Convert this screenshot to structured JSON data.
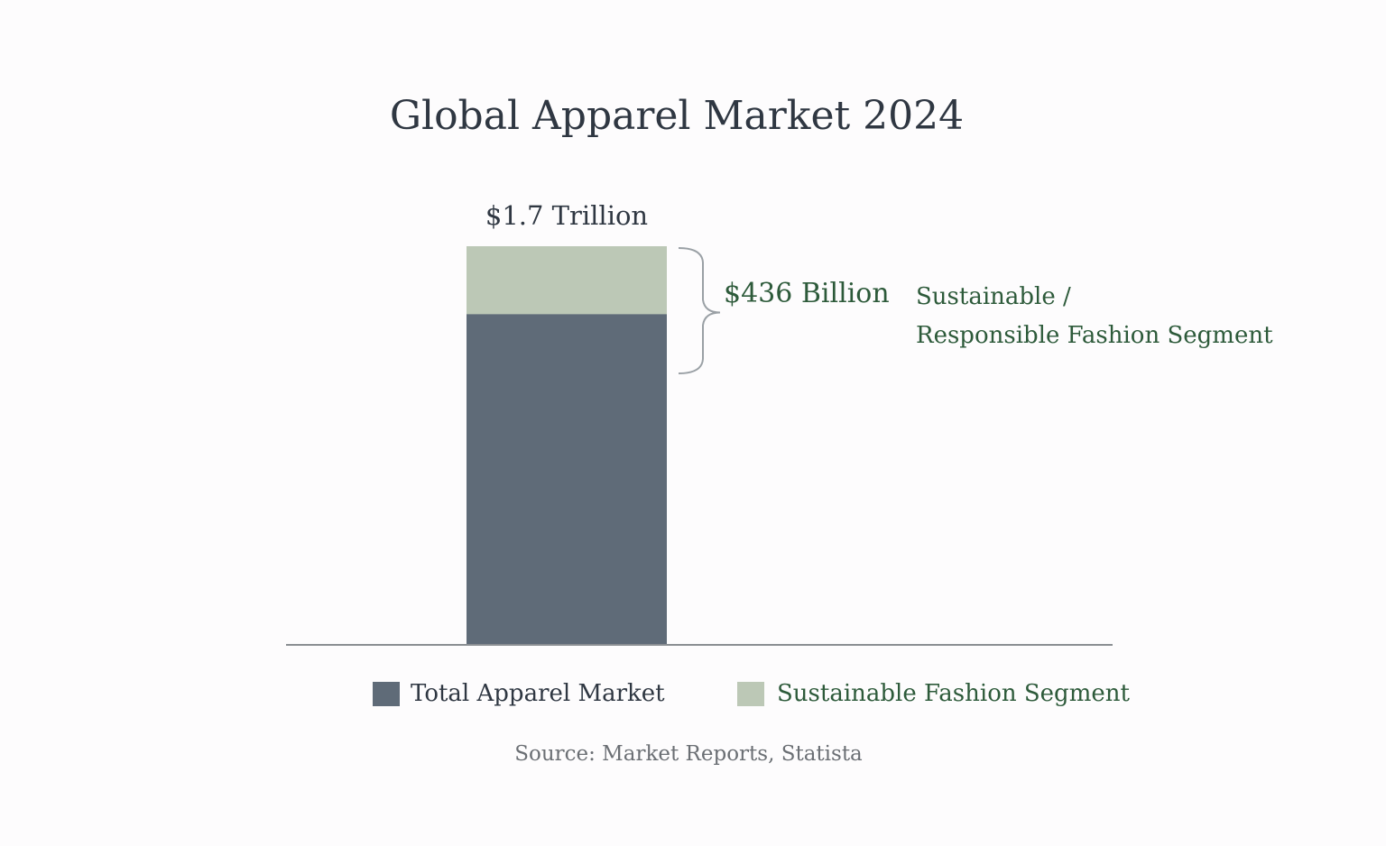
{
  "chart_data": {
    "type": "bar",
    "title": "Global Apparel Market  2024",
    "categories": [
      ""
    ],
    "series": [
      {
        "name": "Total Apparel Market",
        "values": [
          1.7
        ],
        "unit": "Trillion USD",
        "label": "$1.7 Trillion"
      },
      {
        "name": "Sustainable Fashion Segment",
        "values": [
          0.436
        ],
        "unit": "Trillion USD",
        "label": "$436 Billion"
      }
    ],
    "annotation": {
      "value_label": "$436 Billion",
      "description_lines": [
        "Sustainable /",
        "Responsible Fashion Segment"
      ]
    },
    "ylim": [
      0,
      1.7
    ],
    "grid": false,
    "legend": {
      "placement": "bottom",
      "items": [
        {
          "label": "Total Apparel Market",
          "color": "#5f6b78"
        },
        {
          "label": "Sustainable Fashion Segment",
          "color": "#bcc8b6"
        }
      ]
    },
    "source": "Source:  Market Reports, Statista"
  },
  "colors": {
    "total": "#5f6b78",
    "segment": "#bcc8b6",
    "axis": "#8a8e92",
    "bracket": "#9aa0a5",
    "text_dark": "#2f3742",
    "text_green": "#2d5a3a"
  }
}
